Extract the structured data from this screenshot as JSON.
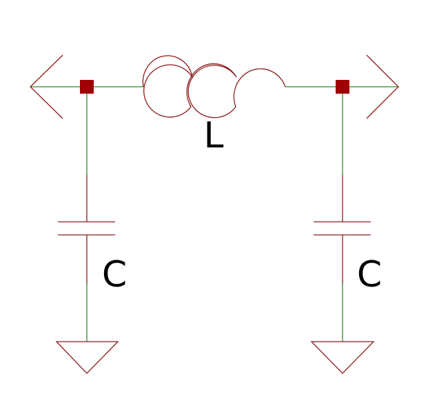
{
  "diagram": {
    "type": "pi-filter-schematic",
    "colors": {
      "wire": "#2e8b2e",
      "component": "#8b1a1a",
      "junction": "#a00000",
      "text": "#000000",
      "background": "#ffffff"
    },
    "components": {
      "inductor": {
        "label": "L"
      },
      "capacitor_left": {
        "label": "C"
      },
      "capacitor_right": {
        "label": "C"
      }
    }
  }
}
